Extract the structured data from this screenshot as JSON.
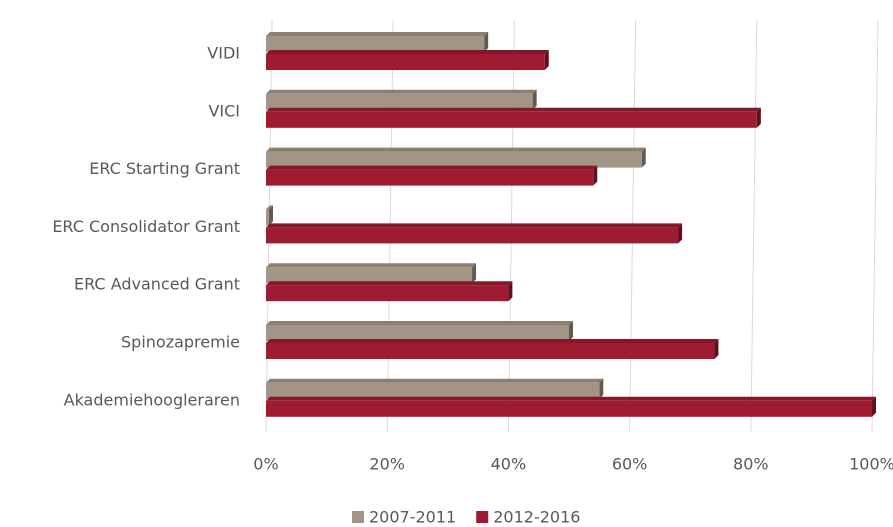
{
  "chart_data": {
    "type": "bar",
    "orientation": "horizontal",
    "categories": [
      "VIDI",
      "VICI",
      "ERC Starting Grant",
      "ERC Consolidator Grant",
      "ERC Advanced Grant",
      "Spinozapremie",
      "Akademiehoogleraren"
    ],
    "series": [
      {
        "name": "2007-2011",
        "color": "#a39585",
        "values": [
          36,
          44,
          62,
          0.5,
          34,
          50,
          55
        ]
      },
      {
        "name": "2012-2016",
        "color": "#9e1b32",
        "values": [
          46,
          81,
          54,
          68,
          40,
          74,
          100
        ]
      }
    ],
    "xlim": [
      0,
      100
    ],
    "xticks": [
      {
        "value": 0,
        "label": "0%"
      },
      {
        "value": 20,
        "label": "20%"
      },
      {
        "value": 40,
        "label": "40%"
      },
      {
        "value": 60,
        "label": "60%"
      },
      {
        "value": 80,
        "label": "80%"
      },
      {
        "value": 100,
        "label": "100%"
      }
    ],
    "grid": true,
    "legend": "bottom"
  }
}
